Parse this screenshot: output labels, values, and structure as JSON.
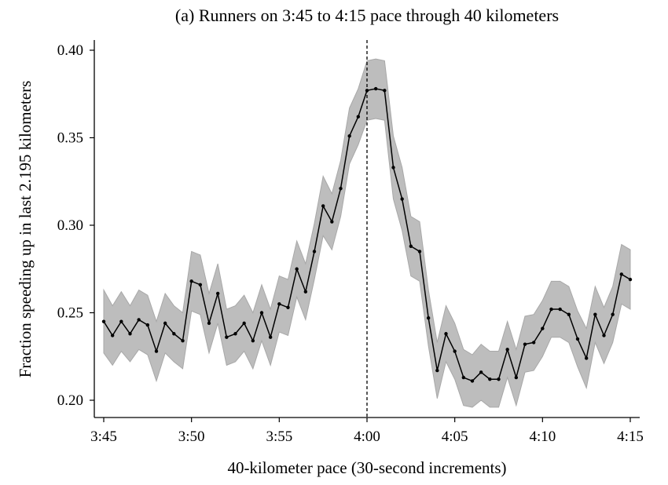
{
  "chart_data": {
    "type": "line",
    "title": "(a) Runners on 3:45 to 4:15 pace through 40 kilometers",
    "xlabel": "40-kilometer pace (30-second increments)",
    "ylabel": "Fraction speeding up in last 2.195 kilometers",
    "x_unit": "minutes after 3:00 (pace)",
    "xlim": [
      45,
      75
    ],
    "ylim": [
      0.19,
      0.405
    ],
    "x_ticks": [
      {
        "value": 45,
        "label": "3:45"
      },
      {
        "value": 50,
        "label": "3:50"
      },
      {
        "value": 55,
        "label": "3:55"
      },
      {
        "value": 60,
        "label": "4:00"
      },
      {
        "value": 65,
        "label": "4:05"
      },
      {
        "value": 70,
        "label": "4:10"
      },
      {
        "value": 75,
        "label": "4:15"
      }
    ],
    "y_ticks": [
      {
        "value": 0.2,
        "label": "0.20"
      },
      {
        "value": 0.25,
        "label": "0.25"
      },
      {
        "value": 0.3,
        "label": "0.30"
      },
      {
        "value": 0.35,
        "label": "0.35"
      },
      {
        "value": 0.4,
        "label": "0.40"
      }
    ],
    "reference_line": {
      "x": 60,
      "style": "dashed",
      "label": "4:00"
    },
    "grid": false,
    "series": [
      {
        "name": "Fraction speeding up",
        "color": "#000000",
        "band_color": "#bdbdbd",
        "x_start": 45,
        "x_step": 0.5,
        "values": [
          0.245,
          0.237,
          0.245,
          0.238,
          0.246,
          0.243,
          0.228,
          0.244,
          0.238,
          0.234,
          0.268,
          0.266,
          0.244,
          0.261,
          0.236,
          0.238,
          0.244,
          0.234,
          0.25,
          0.236,
          0.255,
          0.253,
          0.275,
          0.262,
          0.285,
          0.311,
          0.302,
          0.321,
          0.351,
          0.362,
          0.377,
          0.378,
          0.377,
          0.333,
          0.315,
          0.288,
          0.285,
          0.247,
          0.217,
          0.238,
          0.228,
          0.213,
          0.211,
          0.216,
          0.212,
          0.212,
          0.229,
          0.213,
          0.232,
          0.233,
          0.241,
          0.252,
          0.252,
          0.249,
          0.235,
          0.224,
          0.249,
          0.237,
          0.249,
          0.272,
          0.269
        ],
        "ci_halfwidth": [
          0.018,
          0.017,
          0.017,
          0.016,
          0.017,
          0.017,
          0.017,
          0.017,
          0.016,
          0.016,
          0.017,
          0.017,
          0.017,
          0.017,
          0.016,
          0.016,
          0.016,
          0.016,
          0.016,
          0.016,
          0.016,
          0.016,
          0.016,
          0.016,
          0.016,
          0.017,
          0.016,
          0.016,
          0.016,
          0.016,
          0.017,
          0.017,
          0.017,
          0.018,
          0.018,
          0.017,
          0.017,
          0.016,
          0.016,
          0.016,
          0.016,
          0.016,
          0.015,
          0.016,
          0.016,
          0.016,
          0.016,
          0.016,
          0.016,
          0.016,
          0.016,
          0.016,
          0.016,
          0.016,
          0.016,
          0.017,
          0.016,
          0.016,
          0.016,
          0.017,
          0.017
        ]
      }
    ]
  }
}
